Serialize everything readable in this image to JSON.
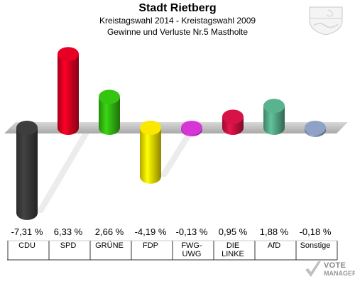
{
  "header": {
    "title": "Stadt Rietberg",
    "subtitle1": "Kreistagswahl 2014 - Kreistagswahl 2009",
    "subtitle2": "Gewinne und Verluste Nr.5 Mastholte"
  },
  "logo": {
    "line1": "VOTE",
    "line2": "MANAGER"
  },
  "colors": {
    "CDU": "#3a3a3a",
    "SPD": "#dd0022",
    "GRUENE": "#33bb11",
    "FDP": "#eedd00",
    "FWG": "#cc33cc",
    "DIE_LINKE": "#cc1144",
    "AfD": "#55aa88",
    "Sonstige": "#8899bb",
    "baseline": "#aaaaaa"
  },
  "chart_data": {
    "type": "bar",
    "title": "Stadt Rietberg",
    "categories": [
      "CDU",
      "SPD",
      "GRÜNE",
      "FDP",
      "FWG-\nUWG",
      "DIE\nLINKE",
      "AfD",
      "Sonstige"
    ],
    "values": [
      -7.31,
      6.33,
      2.66,
      -4.19,
      -0.13,
      0.95,
      1.88,
      -0.18
    ],
    "value_labels": [
      "-7,31 %",
      "6,33 %",
      "2,66 %",
      "-4,19 %",
      "-0,13 %",
      "0,95 %",
      "1,88 %",
      "-0,18 %"
    ],
    "unit": "%",
    "grid": false,
    "legend": "none"
  }
}
